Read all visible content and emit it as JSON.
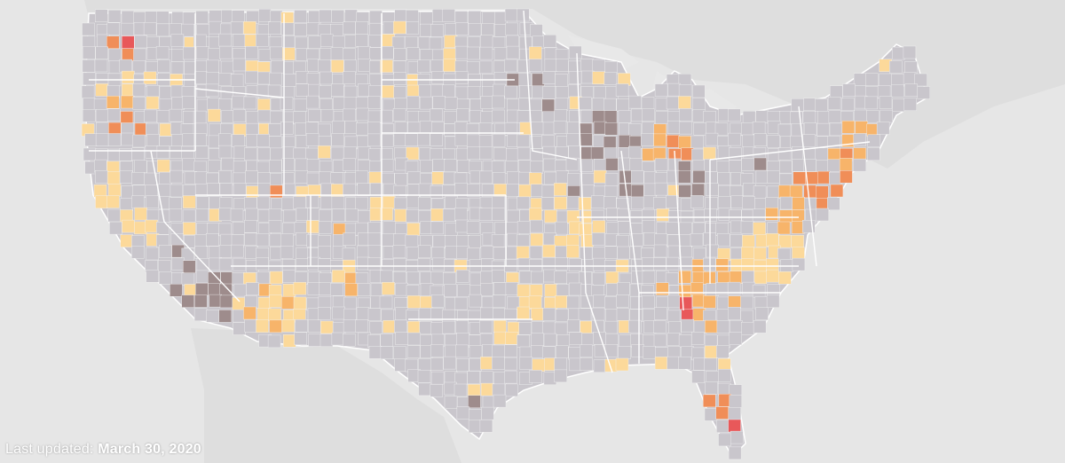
{
  "map": {
    "footer": {
      "prefix": "Last updated:",
      "date": "March 30, 2020"
    },
    "colors": {
      "water": "#e6e6e6",
      "land_outside": "#dcdcdc",
      "county_default": "#c9c6cc",
      "county_border": "#f2f2f2",
      "state_border": "#ffffff",
      "low": "#fcd99a",
      "mid": "#f7b46a",
      "high": "#f08e58",
      "very_high": "#e8585a",
      "no_data": "#9e8c8c"
    }
  }
}
